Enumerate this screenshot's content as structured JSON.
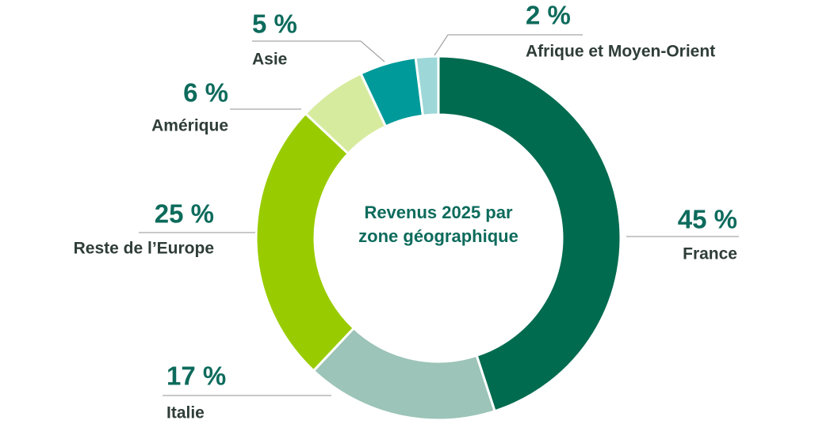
{
  "chart_data": {
    "type": "donut",
    "title": "Revenus 2025 par zone géographique",
    "categories": [
      "France",
      "Italie",
      "Reste de l’Europe",
      "Amérique",
      "Asie",
      "Afrique et Moyen-Orient"
    ],
    "values": [
      45,
      17,
      25,
      6,
      5,
      2
    ],
    "value_labels": [
      "45 %",
      "17 %",
      "25 %",
      "6 %",
      "5 %",
      "2 %"
    ],
    "colors": [
      "#006b4f",
      "#9cc4b8",
      "#99cc00",
      "#d7eb9f",
      "#009a9a",
      "#9dd7d7"
    ]
  }
}
